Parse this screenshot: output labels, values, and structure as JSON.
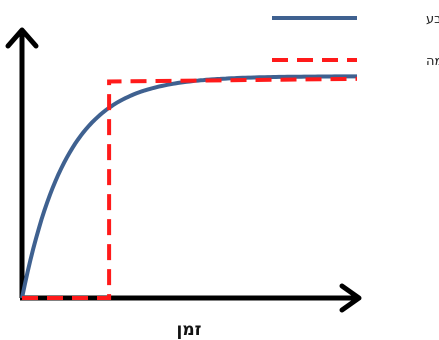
{
  "chart_data": {
    "type": "line",
    "title": "",
    "xlabel": "זמן",
    "ylabel": "",
    "ticks": false,
    "grid": false,
    "legend_position": "top-right",
    "series": [
      {
        "name": "הטבע",
        "style": "solid",
        "color": "#3f6190",
        "shape": "saturating curve rising steeply from the origin to a plateau",
        "plateau": 0.84
      },
      {
        "name": "הנורמה",
        "style": "dashed",
        "color": "#ff1a1a",
        "shape": "zero, then a vertical step up to the plateau",
        "step_x": 0.26,
        "plateau": 0.82
      }
    ]
  }
}
